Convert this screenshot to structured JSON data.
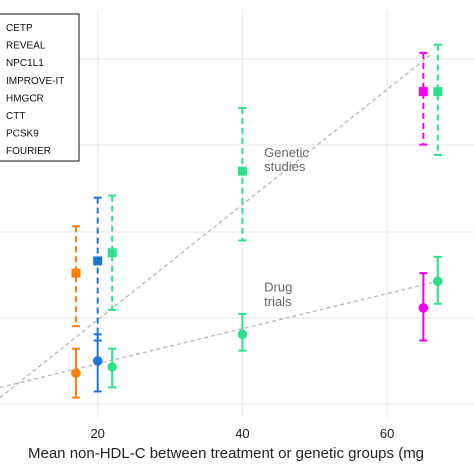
{
  "chart_data": {
    "type": "scatter",
    "xlabel": "Mean non-HDL-C between treatment or genetic groups (mg",
    "x_ticks": [
      20,
      40,
      60
    ],
    "xlim": [
      6.5,
      72
    ],
    "y_gridlines": 6,
    "grid": true,
    "legend_position": "top-left",
    "legend": [
      "CETP",
      "REVEAL",
      "NPC1L1",
      "IMPROVE-IT",
      "HMGCR",
      "CTT",
      "PCSK9",
      "FOURIER"
    ],
    "annotations": [
      {
        "text": "Genetic",
        "x": 43,
        "y": 0.64
      },
      {
        "text": "studies",
        "x": 43,
        "y": 0.605
      },
      {
        "text": "Drug",
        "x": 43,
        "y": 0.31
      },
      {
        "text": "trials",
        "x": 43,
        "y": 0.275
      }
    ],
    "colors": {
      "CETP": "#ee00ee",
      "NPC1L1": "#ff7f0e",
      "HMGCR": "#1f77d4",
      "PCSK9": "#2fe08a",
      "line": "#b8b8b8"
    },
    "trend_lines": [
      {
        "name": "Genetic studies",
        "x": [
          6.5,
          66
        ],
        "y": [
          0.05,
          0.89
        ]
      },
      {
        "name": "Drug trials",
        "x": [
          6.5,
          67
        ],
        "y": [
          0.075,
          0.335
        ]
      }
    ],
    "series": [
      {
        "name": "CETP",
        "color": "#ee00ee",
        "kind": "genetic",
        "x": 65,
        "y": 0.8,
        "ylo": 0.67,
        "yhi": 0.895
      },
      {
        "name": "CETP",
        "color": "#ee00ee",
        "kind": "trial",
        "x": 65,
        "y": 0.27,
        "ylo": 0.19,
        "yhi": 0.355
      },
      {
        "name": "NPC1L1",
        "color": "#ff7f0e",
        "kind": "genetic",
        "x": 17,
        "y": 0.355,
        "ylo": 0.225,
        "yhi": 0.47
      },
      {
        "name": "NPC1L1",
        "color": "#ff7f0e",
        "kind": "trial",
        "x": 17,
        "y": 0.11,
        "ylo": 0.05,
        "yhi": 0.17
      },
      {
        "name": "HMGCR",
        "color": "#1f77d4",
        "kind": "genetic",
        "x": 20,
        "y": 0.385,
        "ylo": 0.19,
        "yhi": 0.54
      },
      {
        "name": "HMGCR",
        "color": "#1f77d4",
        "kind": "trial",
        "x": 20,
        "y": 0.14,
        "ylo": 0.065,
        "yhi": 0.205
      },
      {
        "name": "PCSK9",
        "color": "#2fe08a",
        "kind": "genetic",
        "x": 22,
        "y": 0.405,
        "ylo": 0.265,
        "yhi": 0.545
      },
      {
        "name": "PCSK9",
        "color": "#2fe08a",
        "kind": "trial",
        "x": 22,
        "y": 0.125,
        "ylo": 0.075,
        "yhi": 0.17
      },
      {
        "name": "PCSK9",
        "color": "#2fe08a",
        "kind": "genetic",
        "x": 40,
        "y": 0.605,
        "ylo": 0.435,
        "yhi": 0.76
      },
      {
        "name": "PCSK9",
        "color": "#2fe08a",
        "kind": "trial",
        "x": 40,
        "y": 0.205,
        "ylo": 0.165,
        "yhi": 0.255
      },
      {
        "name": "PCSK9",
        "color": "#2fe08a",
        "kind": "genetic",
        "x": 67,
        "y": 0.8,
        "ylo": 0.645,
        "yhi": 0.915
      },
      {
        "name": "PCSK9",
        "color": "#2fe08a",
        "kind": "trial",
        "x": 67,
        "y": 0.335,
        "ylo": 0.28,
        "yhi": 0.395
      }
    ]
  }
}
